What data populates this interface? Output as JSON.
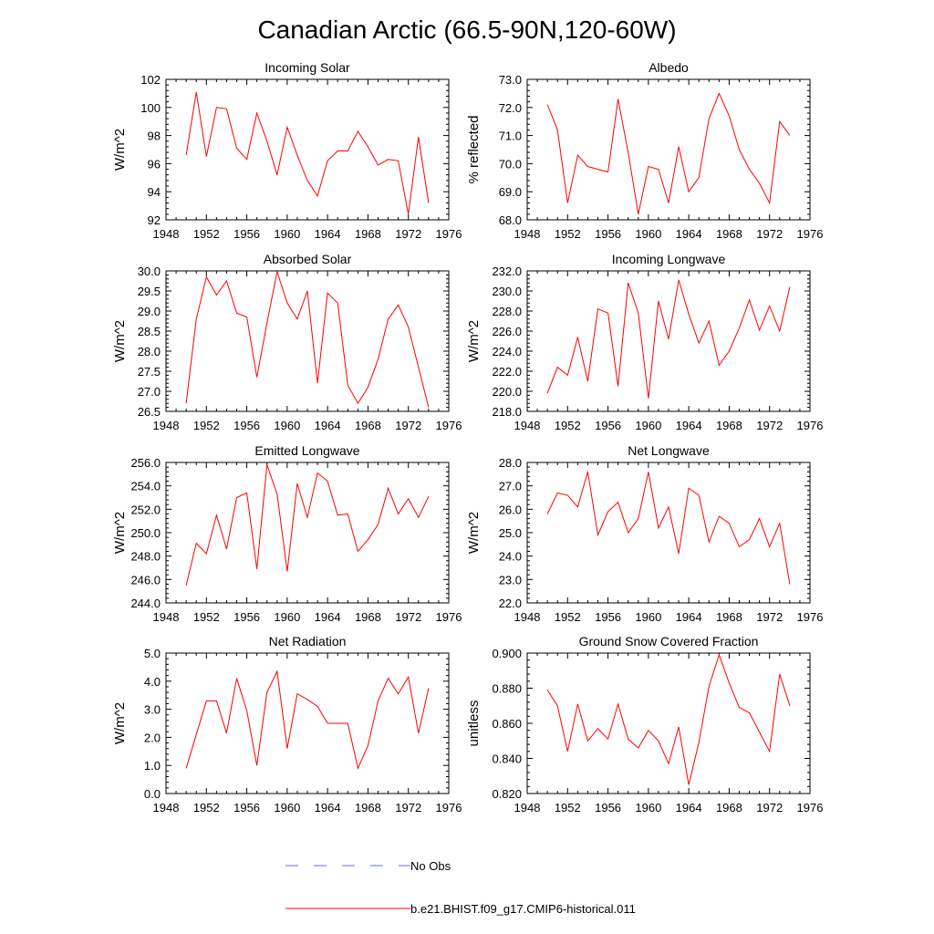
{
  "figure": {
    "title": "Canadian Arctic (66.5-90N,120-60W)"
  },
  "legend": {
    "items": [
      {
        "label": "No Obs",
        "style": "dashed",
        "color": "#5b6fd6"
      },
      {
        "label": "b.e21.BHIST.f09_g17.CMIP6-historical.011",
        "style": "solid",
        "color": "#ff0000"
      }
    ]
  },
  "chart_data": [
    {
      "type": "line",
      "title": "Incoming Solar",
      "xlabel": "",
      "ylabel": "W/m^2",
      "xlim": [
        1948,
        1976
      ],
      "ylim": [
        92,
        102
      ],
      "xticks": [
        "1948",
        "1952",
        "1956",
        "1960",
        "1964",
        "1968",
        "1972",
        "1976"
      ],
      "yticks": [
        "92",
        "94",
        "96",
        "98",
        "100",
        "102"
      ],
      "series": [
        {
          "color": "#ff0000",
          "x": [
            1950,
            1951,
            1952,
            1953,
            1954,
            1955,
            1956,
            1957,
            1958,
            1959,
            1960,
            1961,
            1962,
            1963,
            1964,
            1965,
            1966,
            1967,
            1968,
            1969,
            1970,
            1971,
            1972,
            1973,
            1974
          ],
          "values": [
            96.6,
            101.1,
            96.5,
            100.0,
            99.9,
            97.1,
            96.3,
            99.6,
            97.6,
            95.2,
            98.6,
            96.6,
            94.8,
            93.7,
            96.2,
            96.9,
            96.9,
            98.3,
            97.2,
            95.9,
            96.3,
            96.2,
            92.4,
            97.9,
            93.2
          ]
        }
      ]
    },
    {
      "type": "line",
      "title": "Albedo",
      "xlabel": "",
      "ylabel": "% reflected",
      "xlim": [
        1948,
        1976
      ],
      "ylim": [
        68.0,
        73.0
      ],
      "xticks": [
        "1948",
        "1952",
        "1956",
        "1960",
        "1964",
        "1968",
        "1972",
        "1976"
      ],
      "yticks": [
        "68.0",
        "69.0",
        "70.0",
        "71.0",
        "72.0",
        "73.0"
      ],
      "series": [
        {
          "color": "#ff0000",
          "x": [
            1950,
            1951,
            1952,
            1953,
            1954,
            1955,
            1956,
            1957,
            1958,
            1959,
            1960,
            1961,
            1962,
            1963,
            1964,
            1965,
            1966,
            1967,
            1968,
            1969,
            1970,
            1971,
            1972,
            1973,
            1974
          ],
          "values": [
            72.1,
            71.2,
            68.6,
            70.3,
            69.9,
            69.8,
            69.7,
            72.3,
            70.4,
            68.2,
            69.9,
            69.8,
            68.6,
            70.6,
            69.0,
            69.5,
            71.6,
            72.5,
            71.7,
            70.5,
            69.8,
            69.3,
            68.6,
            71.5,
            71.0
          ]
        }
      ]
    },
    {
      "type": "line",
      "title": "Absorbed Solar",
      "xlabel": "",
      "ylabel": "W/m^2",
      "xlim": [
        1948,
        1976
      ],
      "ylim": [
        26.5,
        30.0
      ],
      "xticks": [
        "1948",
        "1952",
        "1956",
        "1960",
        "1964",
        "1968",
        "1972",
        "1976"
      ],
      "yticks": [
        "26.5",
        "27.0",
        "27.5",
        "28.0",
        "28.5",
        "29.0",
        "29.5",
        "30.0"
      ],
      "series": [
        {
          "color": "#ff0000",
          "x": [
            1950,
            1951,
            1952,
            1953,
            1954,
            1955,
            1956,
            1957,
            1958,
            1959,
            1960,
            1961,
            1962,
            1963,
            1964,
            1965,
            1966,
            1967,
            1968,
            1969,
            1970,
            1971,
            1972,
            1973,
            1974
          ],
          "values": [
            26.7,
            28.8,
            29.85,
            29.4,
            29.75,
            28.95,
            28.85,
            27.35,
            28.7,
            29.98,
            29.2,
            28.8,
            29.5,
            27.2,
            29.45,
            29.2,
            27.15,
            26.7,
            27.1,
            27.8,
            28.8,
            29.15,
            28.6,
            27.6,
            26.6
          ]
        }
      ]
    },
    {
      "type": "line",
      "title": "Incoming Longwave",
      "xlabel": "",
      "ylabel": "W/m^2",
      "xlim": [
        1948,
        1976
      ],
      "ylim": [
        218.0,
        232.0
      ],
      "xticks": [
        "1948",
        "1952",
        "1956",
        "1960",
        "1964",
        "1968",
        "1972",
        "1976"
      ],
      "yticks": [
        "218.0",
        "220.0",
        "222.0",
        "224.0",
        "226.0",
        "228.0",
        "230.0",
        "232.0"
      ],
      "series": [
        {
          "color": "#ff0000",
          "x": [
            1950,
            1951,
            1952,
            1953,
            1954,
            1955,
            1956,
            1957,
            1958,
            1959,
            1960,
            1961,
            1962,
            1963,
            1964,
            1965,
            1966,
            1967,
            1968,
            1969,
            1970,
            1971,
            1972,
            1973,
            1974
          ],
          "values": [
            219.8,
            222.4,
            221.6,
            225.4,
            221.0,
            228.2,
            227.8,
            220.5,
            230.8,
            227.8,
            219.3,
            229.0,
            225.2,
            231.1,
            227.7,
            224.8,
            227.0,
            222.6,
            224.0,
            226.3,
            229.1,
            226.1,
            228.5,
            226.0,
            230.4
          ]
        }
      ]
    },
    {
      "type": "line",
      "title": "Emitted Longwave",
      "xlabel": "",
      "ylabel": "W/m^2",
      "xlim": [
        1948,
        1976
      ],
      "ylim": [
        244.0,
        256.0
      ],
      "xticks": [
        "1948",
        "1952",
        "1956",
        "1960",
        "1964",
        "1968",
        "1972",
        "1976"
      ],
      "yticks": [
        "244.0",
        "246.0",
        "248.0",
        "250.0",
        "252.0",
        "254.0",
        "256.0"
      ],
      "series": [
        {
          "color": "#ff0000",
          "x": [
            1950,
            1951,
            1952,
            1953,
            1954,
            1955,
            1956,
            1957,
            1958,
            1959,
            1960,
            1961,
            1962,
            1963,
            1964,
            1965,
            1966,
            1967,
            1968,
            1969,
            1970,
            1971,
            1972,
            1973,
            1974
          ],
          "values": [
            245.5,
            249.1,
            248.2,
            251.5,
            248.6,
            253.0,
            253.4,
            246.9,
            255.8,
            253.3,
            246.7,
            254.2,
            251.3,
            255.1,
            254.4,
            251.5,
            251.6,
            248.4,
            249.4,
            250.7,
            253.8,
            251.6,
            252.9,
            251.3,
            253.1
          ]
        }
      ]
    },
    {
      "type": "line",
      "title": "Net Longwave",
      "xlabel": "",
      "ylabel": "W/m^2",
      "xlim": [
        1948,
        1976
      ],
      "ylim": [
        22.0,
        28.0
      ],
      "xticks": [
        "1948",
        "1952",
        "1956",
        "1960",
        "1964",
        "1968",
        "1972",
        "1976"
      ],
      "yticks": [
        "22.0",
        "23.0",
        "24.0",
        "25.0",
        "26.0",
        "27.0",
        "28.0"
      ],
      "series": [
        {
          "color": "#ff0000",
          "x": [
            1950,
            1951,
            1952,
            1953,
            1954,
            1955,
            1956,
            1957,
            1958,
            1959,
            1960,
            1961,
            1962,
            1963,
            1964,
            1965,
            1966,
            1967,
            1968,
            1969,
            1970,
            1971,
            1972,
            1973,
            1974
          ],
          "values": [
            25.8,
            26.7,
            26.6,
            26.1,
            27.6,
            24.9,
            25.9,
            26.3,
            25.0,
            25.6,
            27.6,
            25.2,
            26.1,
            24.1,
            26.9,
            26.6,
            24.6,
            25.7,
            25.4,
            24.4,
            24.7,
            25.6,
            24.4,
            25.4,
            22.8
          ]
        }
      ]
    },
    {
      "type": "line",
      "title": "Net Radiation",
      "xlabel": "",
      "ylabel": "W/m^2",
      "xlim": [
        1948,
        1976
      ],
      "ylim": [
        0.0,
        5.0
      ],
      "xticks": [
        "1948",
        "1952",
        "1956",
        "1960",
        "1964",
        "1968",
        "1972",
        "1976"
      ],
      "yticks": [
        "0.0",
        "1.0",
        "2.0",
        "3.0",
        "4.0",
        "5.0"
      ],
      "series": [
        {
          "color": "#ff0000",
          "x": [
            1950,
            1951,
            1952,
            1953,
            1954,
            1955,
            1956,
            1957,
            1958,
            1959,
            1960,
            1961,
            1962,
            1963,
            1964,
            1965,
            1966,
            1967,
            1968,
            1969,
            1970,
            1971,
            1972,
            1973,
            1974
          ],
          "values": [
            0.9,
            2.1,
            3.3,
            3.3,
            2.15,
            4.1,
            2.95,
            1.0,
            3.6,
            4.35,
            1.6,
            3.55,
            3.35,
            3.1,
            2.5,
            2.5,
            2.5,
            0.9,
            1.7,
            3.3,
            4.1,
            3.55,
            4.15,
            2.15,
            3.75
          ]
        }
      ]
    },
    {
      "type": "line",
      "title": "Ground Snow Covered Fraction",
      "xlabel": "",
      "ylabel": "unitless",
      "xlim": [
        1948,
        1976
      ],
      "ylim": [
        0.82,
        0.9
      ],
      "xticks": [
        "1948",
        "1952",
        "1956",
        "1960",
        "1964",
        "1968",
        "1972",
        "1976"
      ],
      "yticks": [
        "0.820",
        "0.840",
        "0.860",
        "0.880",
        "0.900"
      ],
      "series": [
        {
          "color": "#ff0000",
          "x": [
            1950,
            1951,
            1952,
            1953,
            1954,
            1955,
            1956,
            1957,
            1958,
            1959,
            1960,
            1961,
            1962,
            1963,
            1964,
            1965,
            1966,
            1967,
            1968,
            1969,
            1970,
            1971,
            1972,
            1973,
            1974
          ],
          "values": [
            0.879,
            0.87,
            0.844,
            0.871,
            0.85,
            0.857,
            0.851,
            0.871,
            0.851,
            0.846,
            0.856,
            0.85,
            0.837,
            0.858,
            0.825,
            0.849,
            0.881,
            0.899,
            0.883,
            0.869,
            0.866,
            0.855,
            0.844,
            0.888,
            0.87
          ]
        }
      ]
    }
  ]
}
